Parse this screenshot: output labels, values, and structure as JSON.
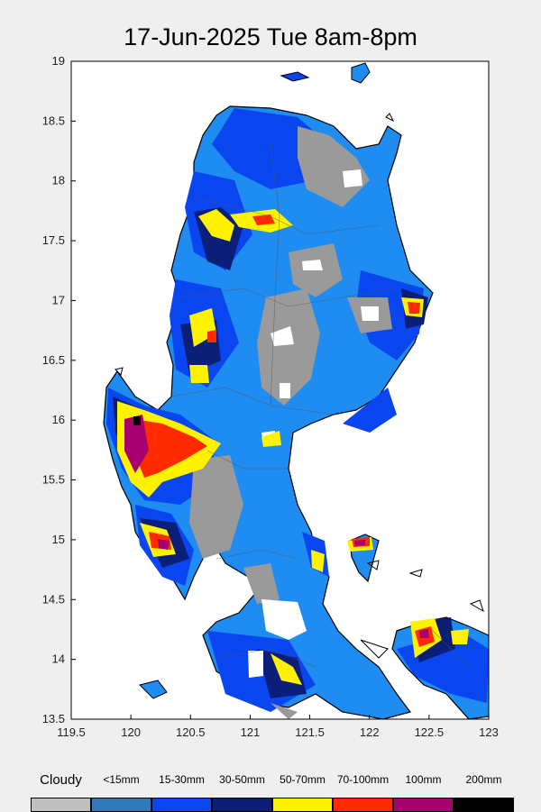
{
  "title": "17-Jun-2025 Tue 8am-8pm",
  "axes": {
    "x_ticks": [
      "119.5",
      "120",
      "120.5",
      "121",
      "121.5",
      "122",
      "122.5",
      "123"
    ],
    "y_ticks": [
      "19",
      "18.5",
      "18",
      "17.5",
      "17",
      "16.5",
      "16",
      "15.5",
      "15",
      "14.5",
      "14",
      "13.5"
    ],
    "xlim": [
      119.5,
      123
    ],
    "ylim": [
      13.5,
      19
    ]
  },
  "legend": [
    {
      "label": "Cloudy",
      "color": "#c0c0c0"
    },
    {
      "label": "<15mm",
      "color": "#2f7ab8"
    },
    {
      "label": "15-30mm",
      "color": "#0a46f0"
    },
    {
      "label": "30-50mm",
      "color": "#0c1f78"
    },
    {
      "label": "50-70mm",
      "color": "#fff200"
    },
    {
      "label": "70-100mm",
      "color": "#ff2a00"
    },
    {
      "label": "100mm",
      "color": "#a8006e"
    },
    {
      "label": "200mm",
      "color": "#000000"
    }
  ],
  "colors": {
    "land_rain": "#1e8cf0",
    "heavy_blue": "#0a46f0",
    "dark_blue": "#0c1f78",
    "cloudy": "#9a9a9a",
    "yellow": "#fff200",
    "red": "#ff2a00",
    "magenta": "#a8006e",
    "outline": "#000000"
  }
}
